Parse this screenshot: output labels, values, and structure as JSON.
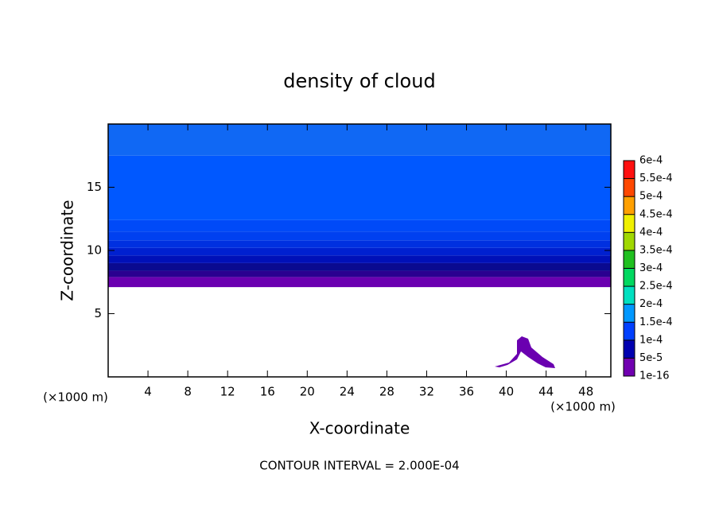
{
  "chart_data": {
    "type": "contour",
    "title": "density of cloud",
    "x_label": "X-coordinate",
    "y_label": "Z-coordinate",
    "x_unit": "(×1000 m)",
    "x_unit_right": "(×1000 m)",
    "footnote": "CONTOUR INTERVAL = 2.000E-04",
    "xlim": [
      0,
      50.5
    ],
    "ylim": [
      0,
      20
    ],
    "xticks": [
      4,
      8,
      12,
      16,
      20,
      24,
      28,
      32,
      36,
      40,
      44,
      48
    ],
    "yticks": [
      5,
      10,
      15
    ],
    "field": [
      {
        "z": [
          7.1,
          7.9
        ],
        "color": "#6a00b0"
      },
      {
        "z": [
          7.9,
          8.4
        ],
        "color": "#2a0090"
      },
      {
        "z": [
          8.4,
          9.0
        ],
        "color": "#0a0a90"
      },
      {
        "z": [
          9.0,
          9.6
        ],
        "color": "#0010b8"
      },
      {
        "z": [
          9.6,
          10.2
        ],
        "color": "#0020d0"
      },
      {
        "z": [
          10.2,
          10.8
        ],
        "color": "#0030e0"
      },
      {
        "z": [
          10.8,
          11.5
        ],
        "color": "#0040f0"
      },
      {
        "z": [
          11.5,
          12.4
        ],
        "color": "#004af8"
      },
      {
        "z": [
          12.4,
          17.5
        ],
        "color": "#0058ff"
      },
      {
        "z": [
          17.5,
          20
        ],
        "color": "#1068f4"
      }
    ],
    "colorbar": {
      "levels": [
        {
          "value": 1e-16,
          "label": "1e-16"
        },
        {
          "value": 5e-05,
          "label": "5e-5"
        },
        {
          "value": 0.0001,
          "label": "1e-4"
        },
        {
          "value": 0.00015,
          "label": "1.5e-4"
        },
        {
          "value": 0.0002,
          "label": "2e-4"
        },
        {
          "value": 0.00025,
          "label": "2.5e-4"
        },
        {
          "value": 0.0003,
          "label": "3e-4"
        },
        {
          "value": 0.00035,
          "label": "3.5e-4"
        },
        {
          "value": 0.0004,
          "label": "4e-4"
        },
        {
          "value": 0.00045,
          "label": "4.5e-4"
        },
        {
          "value": 0.0005,
          "label": "5e-4"
        },
        {
          "value": 0.00055,
          "label": "5.5e-4"
        },
        {
          "value": 0.0006,
          "label": "6e-4"
        }
      ],
      "colors": [
        "#7000b0",
        "#0000b0",
        "#0040ff",
        "#0098ff",
        "#00e0c0",
        "#00d860",
        "#20c020",
        "#a0d800",
        "#f0f000",
        "#ffa000",
        "#ff4800",
        "#ff1010",
        "#f08080"
      ]
    }
  }
}
